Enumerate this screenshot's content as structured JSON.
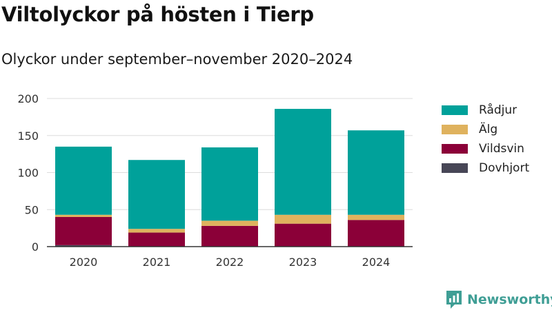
{
  "title": "Viltolyckor på hösten i Tierp",
  "subtitle": "Olyckor under september–november 2020–2024",
  "brand": {
    "name": "Newsworthy",
    "icon": "newsworthy-logo-icon",
    "color": "#3f9e95"
  },
  "chart_data": {
    "type": "bar",
    "stacked": true,
    "categories": [
      "2020",
      "2021",
      "2022",
      "2023",
      "2024"
    ],
    "series": [
      {
        "name": "Dovhjort",
        "color": "#474656",
        "values": [
          2,
          0,
          0,
          0,
          0
        ]
      },
      {
        "name": "Vildsvin",
        "color": "#8b0038",
        "values": [
          38,
          19,
          28,
          31,
          36
        ]
      },
      {
        "name": "Älg",
        "color": "#dfb25e",
        "values": [
          3,
          5,
          7,
          12,
          7
        ]
      },
      {
        "name": "Rådjur",
        "color": "#00a19a",
        "values": [
          92,
          93,
          99,
          143,
          114
        ]
      }
    ],
    "legend_order": [
      "Rådjur",
      "Älg",
      "Vildsvin",
      "Dovhjort"
    ],
    "legend_position": "right",
    "ylim": [
      0,
      200
    ],
    "yticks": [
      0,
      50,
      100,
      150,
      200
    ],
    "grid": true,
    "xlabel": "",
    "ylabel": ""
  }
}
